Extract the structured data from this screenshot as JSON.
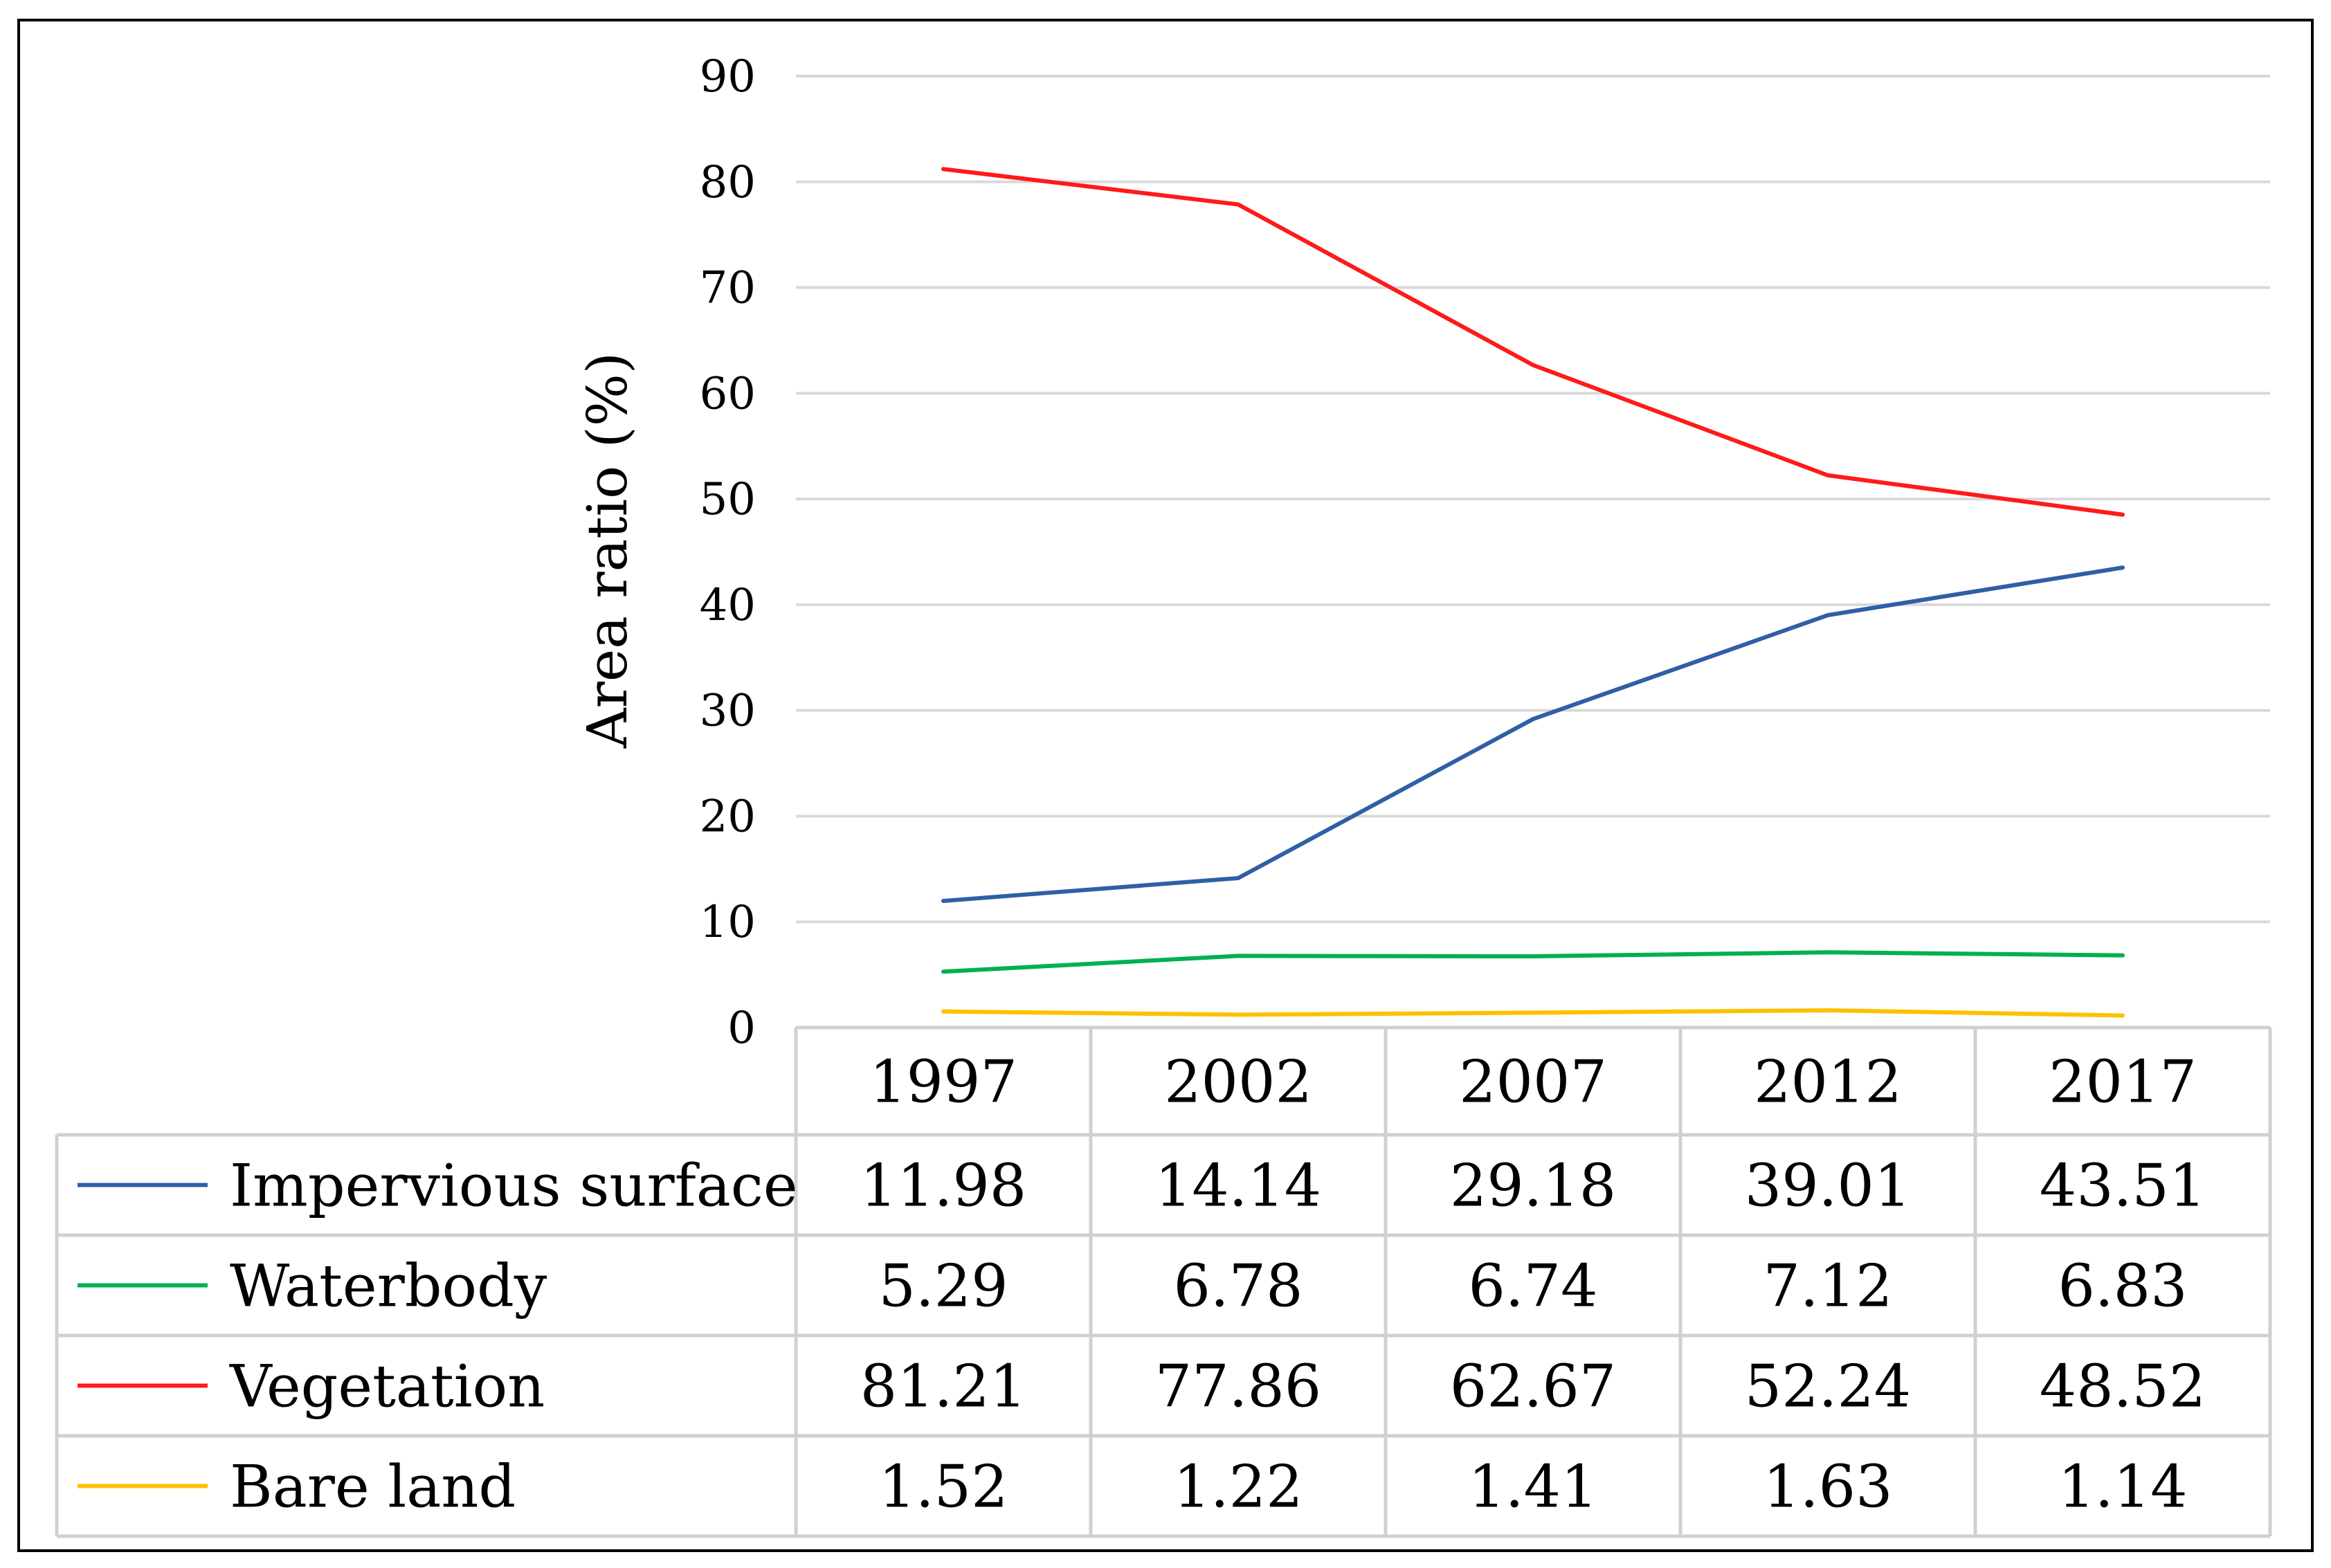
{
  "chart_data": {
    "type": "line",
    "title": "",
    "xlabel": "",
    "ylabel": "Area ratio (%)",
    "ylim": [
      0,
      90
    ],
    "yticks": [
      "0",
      "10",
      "20",
      "30",
      "40",
      "50",
      "60",
      "70",
      "80",
      "90"
    ],
    "grid": true,
    "legend": "embedded data table below the plot",
    "categories": [
      "1997",
      "2002",
      "2007",
      "2012",
      "2017"
    ],
    "series": [
      {
        "name": "Impervious surface",
        "color": "#2f5fa5",
        "values": [
          11.98,
          14.14,
          29.18,
          39.01,
          43.51
        ],
        "labels": [
          "11.98",
          "14.14",
          "29.18",
          "39.01",
          "43.51"
        ]
      },
      {
        "name": "Waterbody",
        "color": "#00b050",
        "values": [
          5.29,
          6.78,
          6.74,
          7.12,
          6.83
        ],
        "labels": [
          "5.29",
          "6.78",
          "6.74",
          "7.12",
          "6.83"
        ]
      },
      {
        "name": "Vegetation",
        "color": "#ff1a1a",
        "values": [
          81.21,
          77.86,
          62.67,
          52.24,
          48.52
        ],
        "labels": [
          "81.21",
          "77.86",
          "62.67",
          "52.24",
          "48.52"
        ]
      },
      {
        "name": "Bare land",
        "color": "#ffc000",
        "values": [
          1.52,
          1.22,
          1.41,
          1.63,
          1.14
        ],
        "labels": [
          "1.52",
          "1.22",
          "1.41",
          "1.63",
          "1.14"
        ]
      }
    ]
  }
}
